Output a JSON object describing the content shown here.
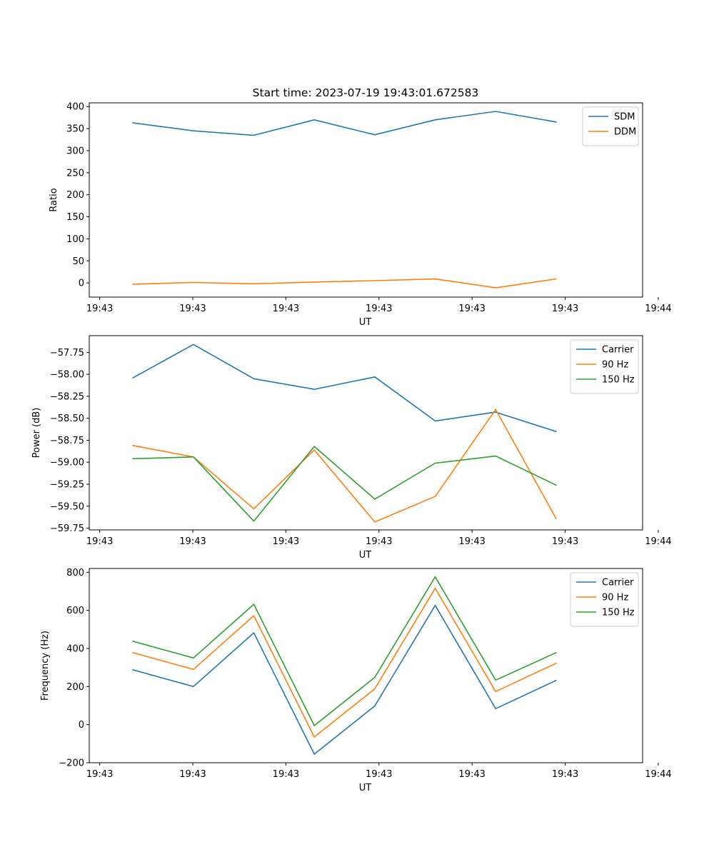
{
  "figure": {
    "title": "Start time: 2023-07-19 19:43:01.672583"
  },
  "chart_data": [
    {
      "type": "line",
      "title": "Start time: 2023-07-19 19:43:01.672583",
      "xlabel": "UT",
      "ylabel": "Ratio",
      "x": [
        1,
        2,
        3,
        4,
        5,
        6,
        7,
        8
      ],
      "xlim": [
        0.277,
        9.431
      ],
      "x_tick_positions": [
        0.45,
        1.99,
        3.53,
        5.07,
        6.61,
        8.15,
        9.69
      ],
      "x_tick_labels": [
        "19:43",
        "19:43",
        "19:43",
        "19:43",
        "19:43",
        "19:43",
        "19:44"
      ],
      "ylim": [
        -32.2,
        408.5
      ],
      "y_ticks": [
        0,
        50,
        100,
        150,
        200,
        250,
        300,
        350,
        400
      ],
      "y_tick_labels": [
        "0",
        "50",
        "100",
        "150",
        "200",
        "250",
        "300",
        "350",
        "400"
      ],
      "legend_position": "upper right",
      "series": [
        {
          "name": "SDM",
          "color": "#1f77b4",
          "values": [
            363,
            345,
            335,
            370,
            336,
            370,
            389,
            365
          ]
        },
        {
          "name": "DDM",
          "color": "#ff7f0e",
          "values": [
            -3,
            1,
            -2,
            2,
            5,
            9,
            -11,
            9
          ]
        }
      ]
    },
    {
      "type": "line",
      "title": "",
      "xlabel": "UT",
      "ylabel": "Power (dB)",
      "x": [
        1,
        2,
        3,
        4,
        5,
        6,
        7,
        8
      ],
      "xlim": [
        0.277,
        9.431
      ],
      "x_tick_positions": [
        0.45,
        1.99,
        3.53,
        5.07,
        6.61,
        8.15,
        9.69
      ],
      "x_tick_labels": [
        "19:43",
        "19:43",
        "19:43",
        "19:43",
        "19:43",
        "19:43",
        "19:44"
      ],
      "ylim": [
        -59.77,
        -57.56
      ],
      "y_ticks": [
        -59.75,
        -59.5,
        -59.25,
        -59.0,
        -58.75,
        -58.5,
        -58.25,
        -58.0,
        -57.75
      ],
      "y_tick_labels": [
        "−59.75",
        "−59.50",
        "−59.25",
        "−59.00",
        "−58.75",
        "−58.50",
        "−58.25",
        "−58.00",
        "−57.75"
      ],
      "legend_position": "upper right",
      "series": [
        {
          "name": "Carrier",
          "color": "#1f77b4",
          "values": [
            -58.04,
            -57.66,
            -58.05,
            -58.17,
            -58.03,
            -58.53,
            -58.43,
            -58.65
          ]
        },
        {
          "name": "90 Hz",
          "color": "#ff7f0e",
          "values": [
            -58.81,
            -58.94,
            -59.53,
            -58.86,
            -59.68,
            -59.39,
            -58.4,
            -59.64
          ]
        },
        {
          "name": "150 Hz",
          "color": "#2ca02c",
          "values": [
            -58.96,
            -58.94,
            -59.67,
            -58.82,
            -59.42,
            -59.01,
            -58.93,
            -59.26
          ]
        }
      ]
    },
    {
      "type": "line",
      "title": "",
      "xlabel": "UT",
      "ylabel": "Frequency (Hz)",
      "x": [
        1,
        2,
        3,
        4,
        5,
        6,
        7,
        8
      ],
      "xlim": [
        0.277,
        9.431
      ],
      "x_tick_positions": [
        0.45,
        1.99,
        3.53,
        5.07,
        6.61,
        8.15,
        9.69
      ],
      "x_tick_labels": [
        "19:43",
        "19:43",
        "19:43",
        "19:43",
        "19:43",
        "19:43",
        "19:44"
      ],
      "ylim": [
        -200,
        820
      ],
      "y_ticks": [
        -200,
        0,
        200,
        400,
        600,
        800
      ],
      "y_tick_labels": [
        "−200",
        "0",
        "200",
        "400",
        "600",
        "800"
      ],
      "legend_position": "upper right",
      "series": [
        {
          "name": "Carrier",
          "color": "#1f77b4",
          "values": [
            288,
            200,
            482,
            -155,
            98,
            626,
            84,
            232
          ]
        },
        {
          "name": "90 Hz",
          "color": "#ff7f0e",
          "values": [
            378,
            290,
            572,
            -65,
            188,
            716,
            174,
            322
          ]
        },
        {
          "name": "150 Hz",
          "color": "#2ca02c",
          "values": [
            438,
            350,
            632,
            -5,
            248,
            776,
            234,
            378
          ]
        }
      ]
    }
  ]
}
